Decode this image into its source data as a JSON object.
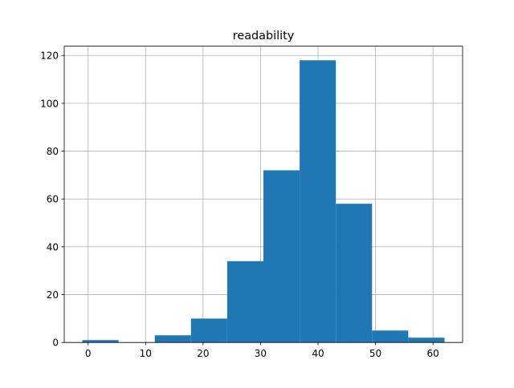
{
  "chart_data": {
    "type": "histogram",
    "title": "readability",
    "bins": [
      -1,
      5.3,
      11.6,
      17.9,
      24.2,
      30.5,
      36.8,
      43.1,
      49.4,
      55.7,
      62
    ],
    "values": [
      1,
      0,
      3,
      10,
      34,
      72,
      118,
      58,
      5,
      2
    ],
    "color": "#1f77b4",
    "xlim": [
      -4.15,
      65.15
    ],
    "xticks": [
      0,
      10,
      20,
      30,
      40,
      50,
      60
    ],
    "ylim": [
      0,
      123.9
    ],
    "yticks": [
      0,
      20,
      40,
      60,
      80,
      100,
      120
    ],
    "grid": true
  }
}
